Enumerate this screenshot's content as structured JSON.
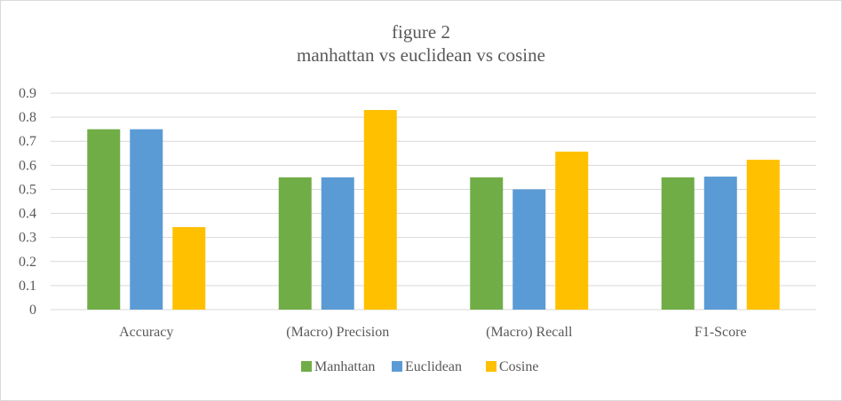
{
  "chart_data": {
    "type": "bar",
    "title": "figure 2",
    "subtitle": "manhattan vs euclidean vs cosine",
    "xlabel": "",
    "ylabel": "",
    "categories": [
      "Accuracy",
      "(Macro) Precision",
      "(Macro) Recall",
      "F1-Score"
    ],
    "series": [
      {
        "name": "Manhattan",
        "color": "#70AD47",
        "values": [
          0.75,
          0.55,
          0.55,
          0.55
        ]
      },
      {
        "name": "Euclidean",
        "color": "#5B9BD5",
        "values": [
          0.75,
          0.55,
          0.5,
          0.553
        ]
      },
      {
        "name": "Cosine",
        "color": "#FFC000",
        "values": [
          0.343,
          0.83,
          0.657,
          0.623
        ]
      }
    ],
    "ylim": [
      0,
      0.9
    ],
    "yticks": [
      "0",
      "0.1",
      "0.2",
      "0.3",
      "0.4",
      "0.5",
      "0.6",
      "0.7",
      "0.8",
      "0.9"
    ],
    "grid": true,
    "legend_position": "bottom"
  }
}
